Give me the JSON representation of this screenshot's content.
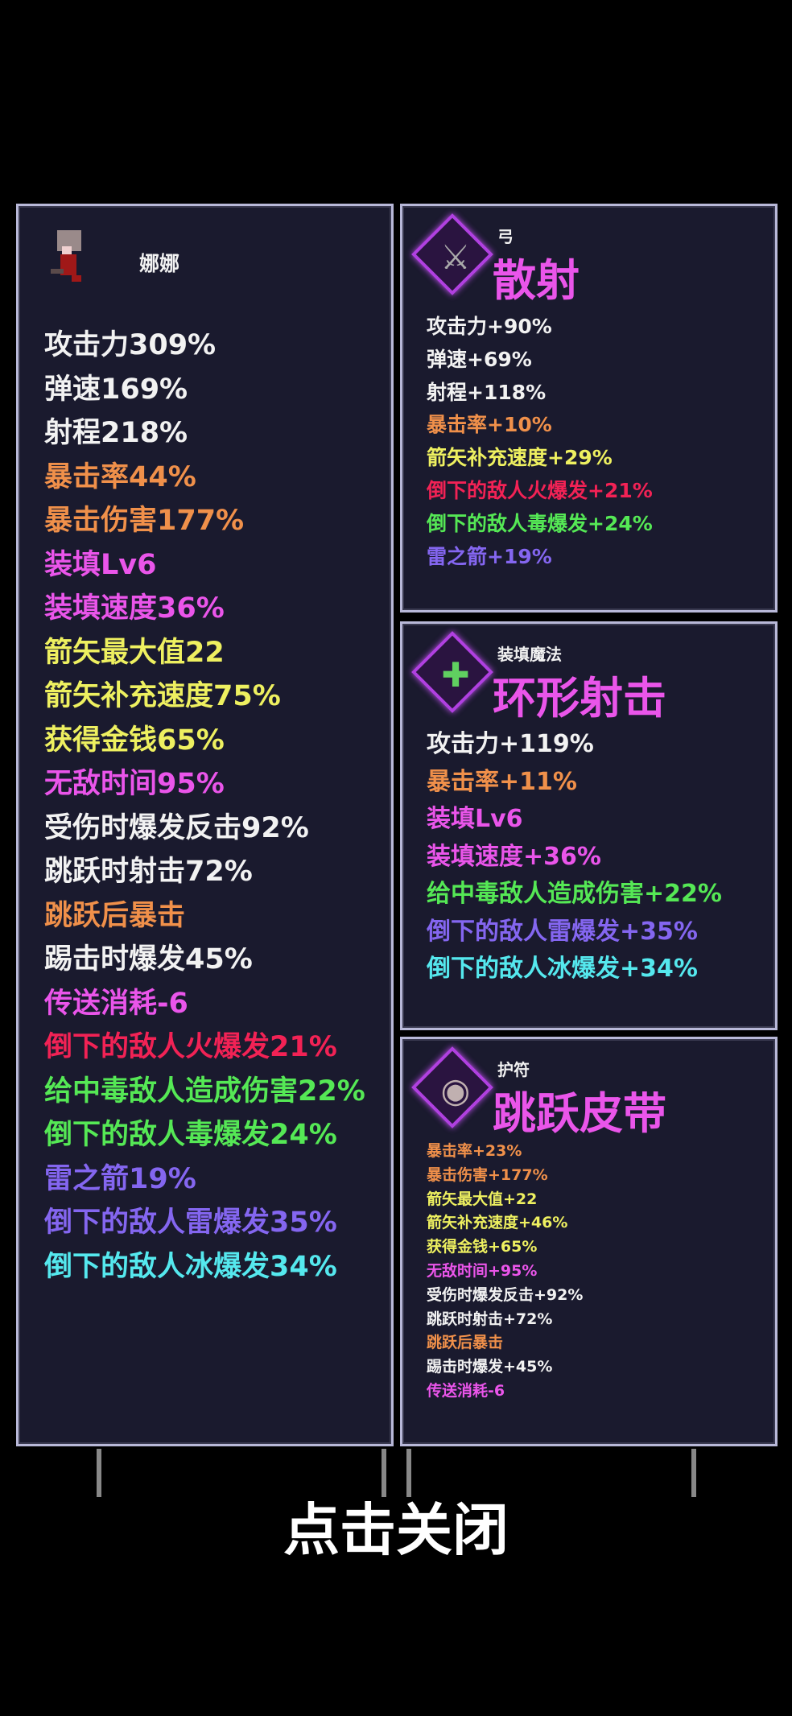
{
  "character": {
    "name": "娜娜",
    "stats": [
      {
        "text": "攻击力309%",
        "color": "w"
      },
      {
        "text": "弹速169%",
        "color": "w"
      },
      {
        "text": "射程218%",
        "color": "w"
      },
      {
        "text": "暴击率44%",
        "color": "o"
      },
      {
        "text": "暴击伤害177%",
        "color": "o"
      },
      {
        "text": "装填Lv6",
        "color": "p"
      },
      {
        "text": "装填速度36%",
        "color": "p"
      },
      {
        "text": "箭矢最大值22",
        "color": "y"
      },
      {
        "text": "箭矢补充速度75%",
        "color": "y"
      },
      {
        "text": "获得金钱65%",
        "color": "y"
      },
      {
        "text": "无敌时间95%",
        "color": "p"
      },
      {
        "text": "受伤时爆发反击92%",
        "color": "w"
      },
      {
        "text": "跳跃时射击72%",
        "color": "w"
      },
      {
        "text": "跳跃后暴击",
        "color": "o"
      },
      {
        "text": "踢击时爆发45%",
        "color": "w"
      },
      {
        "text": "传送消耗-6",
        "color": "p"
      },
      {
        "text": "倒下的敌人火爆发21%",
        "color": "r"
      },
      {
        "text": "给中毒敌人造成伤害22%",
        "color": "g"
      },
      {
        "text": "倒下的敌人毒爆发24%",
        "color": "g"
      },
      {
        "text": "雷之箭19%",
        "color": "v"
      },
      {
        "text": "倒下的敌人雷爆发35%",
        "color": "v"
      },
      {
        "text": "倒下的敌人冰爆发34%",
        "color": "c"
      }
    ]
  },
  "items": [
    {
      "category": "弓",
      "name": "散射",
      "icon": "sword-icon",
      "stats": [
        {
          "text": "攻击力+90%",
          "color": "w"
        },
        {
          "text": "弹速+69%",
          "color": "w"
        },
        {
          "text": "射程+118%",
          "color": "w"
        },
        {
          "text": "暴击率+10%",
          "color": "o"
        },
        {
          "text": "箭矢补充速度+29%",
          "color": "y"
        },
        {
          "text": "倒下的敌人火爆发+21%",
          "color": "r"
        },
        {
          "text": "倒下的敌人毒爆发+24%",
          "color": "g"
        },
        {
          "text": "雷之箭+19%",
          "color": "v"
        }
      ]
    },
    {
      "category": "装填魔法",
      "name": "环形射击",
      "icon": "cross-arrows-icon",
      "stats": [
        {
          "text": "攻击力+119%",
          "color": "w"
        },
        {
          "text": "暴击率+11%",
          "color": "o"
        },
        {
          "text": "装填Lv6",
          "color": "p"
        },
        {
          "text": "装填速度+36%",
          "color": "p"
        },
        {
          "text": "给中毒敌人造成伤害+22%",
          "color": "g"
        },
        {
          "text": "倒下的敌人雷爆发+35%",
          "color": "v"
        },
        {
          "text": "倒下的敌人冰爆发+34%",
          "color": "c"
        }
      ]
    },
    {
      "category": "护符",
      "name": "跳跃皮带",
      "icon": "belt-icon",
      "stats": [
        {
          "text": "暴击率+23%",
          "color": "o"
        },
        {
          "text": "暴击伤害+177%",
          "color": "o"
        },
        {
          "text": "箭矢最大值+22",
          "color": "y"
        },
        {
          "text": "箭矢补充速度+46%",
          "color": "y"
        },
        {
          "text": "获得金钱+65%",
          "color": "y"
        },
        {
          "text": "无敌时间+95%",
          "color": "p"
        },
        {
          "text": "受伤时爆发反击+92%",
          "color": "w"
        },
        {
          "text": "跳跃时射击+72%",
          "color": "w"
        },
        {
          "text": "跳跃后暴击",
          "color": "o"
        },
        {
          "text": "踢击时爆发+45%",
          "color": "w"
        },
        {
          "text": "传送消耗-6",
          "color": "p"
        }
      ]
    }
  ],
  "close_label": "点击关闭"
}
